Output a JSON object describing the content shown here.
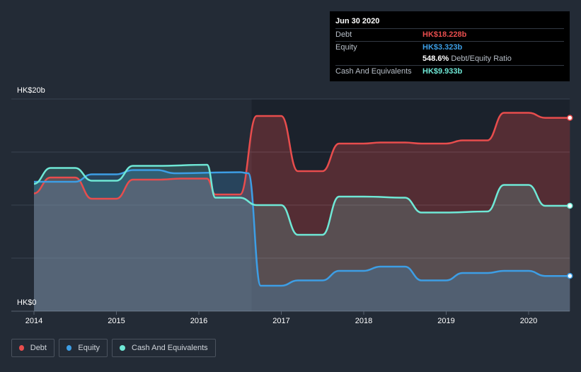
{
  "tooltip": {
    "date": "Jun 30 2020",
    "rows": [
      {
        "label": "Debt",
        "value": "HK$18.228b",
        "color": "#e84d4d"
      },
      {
        "label": "Equity",
        "value": "HK$3.323b",
        "color": "#3d9ee5"
      },
      {
        "label": "",
        "value": "548.6%",
        "suffix": "Debt/Equity Ratio",
        "color": "#ffffff"
      },
      {
        "label": "Cash And Equivalents",
        "value": "HK$9.933b",
        "color": "#6fe8d6"
      }
    ]
  },
  "axis": {
    "y_top_label": "HK$20b",
    "y_bottom_label": "HK$0"
  },
  "legend": [
    {
      "label": "Debt",
      "color": "#e84d4d"
    },
    {
      "label": "Equity",
      "color": "#3d9ee5"
    },
    {
      "label": "Cash And Equivalents",
      "color": "#6fe8d6"
    }
  ],
  "chart_data": {
    "type": "area",
    "x_ticks": [
      "2014",
      "2015",
      "2016",
      "2017",
      "2018",
      "2019",
      "2020"
    ],
    "ylim": [
      0,
      20
    ],
    "y_unit": "HK$ billions",
    "grid": true,
    "legend_placement": "bottom-left",
    "series": [
      {
        "name": "Debt",
        "color": "#e84d4d",
        "points": [
          [
            2014.0,
            11.1
          ],
          [
            2014.2,
            12.6
          ],
          [
            2014.5,
            12.6
          ],
          [
            2014.7,
            10.6
          ],
          [
            2015.0,
            10.6
          ],
          [
            2015.2,
            12.4
          ],
          [
            2015.5,
            12.4
          ],
          [
            2015.8,
            12.5
          ],
          [
            2016.1,
            12.5
          ],
          [
            2016.2,
            11.0
          ],
          [
            2016.5,
            11.0
          ],
          [
            2016.7,
            18.4
          ],
          [
            2017.0,
            18.4
          ],
          [
            2017.2,
            13.2
          ],
          [
            2017.5,
            13.2
          ],
          [
            2017.7,
            15.8
          ],
          [
            2018.0,
            15.8
          ],
          [
            2018.2,
            15.9
          ],
          [
            2018.5,
            15.9
          ],
          [
            2018.7,
            15.8
          ],
          [
            2019.0,
            15.8
          ],
          [
            2019.2,
            16.1
          ],
          [
            2019.5,
            16.1
          ],
          [
            2019.7,
            18.7
          ],
          [
            2020.0,
            18.7
          ],
          [
            2020.2,
            18.228
          ],
          [
            2020.5,
            18.228
          ]
        ]
      },
      {
        "name": "Equity",
        "color": "#3d9ee5",
        "points": [
          [
            2014.0,
            12.2
          ],
          [
            2014.5,
            12.2
          ],
          [
            2014.7,
            12.9
          ],
          [
            2015.0,
            12.9
          ],
          [
            2015.2,
            13.3
          ],
          [
            2015.5,
            13.3
          ],
          [
            2015.7,
            13.0
          ],
          [
            2016.5,
            13.1
          ],
          [
            2016.6,
            13.0
          ],
          [
            2016.75,
            2.4
          ],
          [
            2017.0,
            2.4
          ],
          [
            2017.2,
            2.9
          ],
          [
            2017.5,
            2.9
          ],
          [
            2017.7,
            3.8
          ],
          [
            2018.0,
            3.8
          ],
          [
            2018.2,
            4.2
          ],
          [
            2018.5,
            4.2
          ],
          [
            2018.7,
            2.9
          ],
          [
            2019.0,
            2.9
          ],
          [
            2019.2,
            3.6
          ],
          [
            2019.5,
            3.6
          ],
          [
            2019.7,
            3.8
          ],
          [
            2020.0,
            3.8
          ],
          [
            2020.2,
            3.323
          ],
          [
            2020.5,
            3.323
          ]
        ]
      },
      {
        "name": "Cash And Equivalents",
        "color": "#6fe8d6",
        "points": [
          [
            2014.0,
            12.0
          ],
          [
            2014.2,
            13.5
          ],
          [
            2014.5,
            13.5
          ],
          [
            2014.7,
            12.3
          ],
          [
            2015.0,
            12.3
          ],
          [
            2015.2,
            13.7
          ],
          [
            2015.5,
            13.7
          ],
          [
            2016.1,
            13.8
          ],
          [
            2016.2,
            10.7
          ],
          [
            2016.5,
            10.7
          ],
          [
            2016.7,
            10.0
          ],
          [
            2017.0,
            10.0
          ],
          [
            2017.2,
            7.2
          ],
          [
            2017.5,
            7.2
          ],
          [
            2017.7,
            10.8
          ],
          [
            2018.0,
            10.8
          ],
          [
            2018.5,
            10.7
          ],
          [
            2018.7,
            9.3
          ],
          [
            2019.0,
            9.3
          ],
          [
            2019.5,
            9.4
          ],
          [
            2019.7,
            11.9
          ],
          [
            2020.0,
            11.9
          ],
          [
            2020.2,
            9.933
          ],
          [
            2020.5,
            9.933
          ]
        ]
      }
    ]
  }
}
